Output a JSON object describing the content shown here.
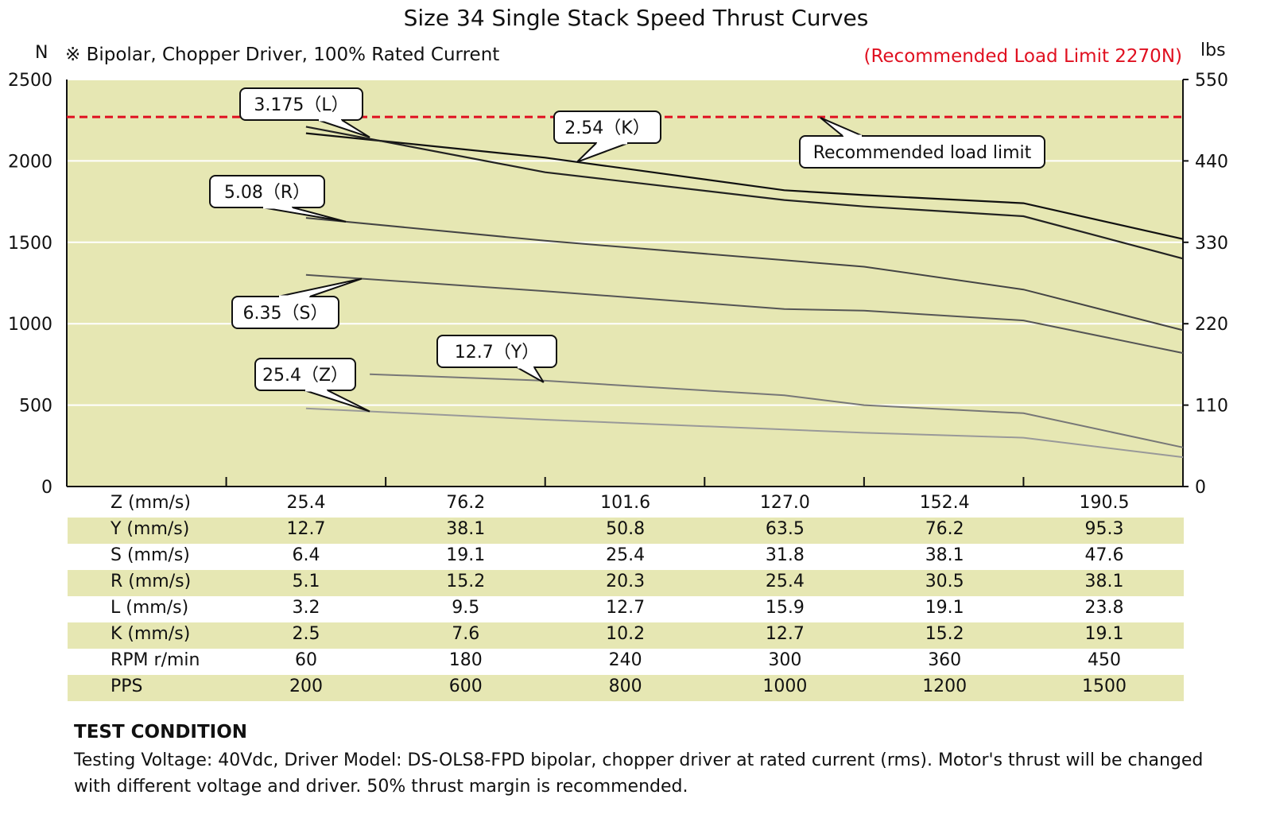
{
  "chart_data": {
    "type": "line",
    "title": "Size 34 Single Stack Speed Thrust Curves",
    "subtitle": "※ Bipolar, Chopper Driver, 100% Rated Current",
    "ylabel_left": "N",
    "ylabel_right": "lbs",
    "ylim": [
      0,
      2500
    ],
    "y_ticks": [
      "0",
      "500",
      "1000",
      "1500",
      "2000",
      "2500"
    ],
    "y2_ticks": [
      "0",
      "110",
      "220",
      "330",
      "440",
      "550"
    ],
    "x_positions": [
      1,
      2,
      3,
      4,
      5,
      6,
      7
    ],
    "load_limit_value": 2270,
    "load_limit_note": "(Recommended Load Limit 2270N)",
    "load_limit_label": "Recommended load limit",
    "series": [
      {
        "name": "2.54 (K)",
        "label": "2.54（K）",
        "color": "#111111",
        "x": [
          1.5,
          3.0,
          4.5,
          5.0,
          6.0,
          7.0
        ],
        "values": [
          2170,
          2020,
          1820,
          1790,
          1740,
          1520
        ]
      },
      {
        "name": "3.175 (L)",
        "label": "3.175（L）",
        "color": "#222222",
        "x": [
          1.5,
          3.0,
          4.5,
          5.0,
          6.0,
          7.0
        ],
        "values": [
          2210,
          1930,
          1760,
          1720,
          1660,
          1400
        ]
      },
      {
        "name": "5.08 (R)",
        "label": "5.08（R）",
        "color": "#444444",
        "x": [
          1.5,
          3.0,
          4.5,
          5.0,
          6.0,
          7.0
        ],
        "values": [
          1650,
          1510,
          1390,
          1350,
          1210,
          960
        ]
      },
      {
        "name": "6.35 (S)",
        "label": "6.35（S）",
        "color": "#555555",
        "x": [
          1.5,
          3.0,
          4.5,
          5.0,
          6.0,
          7.0
        ],
        "values": [
          1300,
          1200,
          1090,
          1080,
          1020,
          820
        ]
      },
      {
        "name": "12.7 (Y)",
        "label": "12.7（Y）",
        "color": "#777777",
        "x": [
          1.9,
          3.0,
          4.5,
          5.0,
          6.0,
          7.0
        ],
        "values": [
          690,
          650,
          560,
          500,
          450,
          240
        ]
      },
      {
        "name": "25.4 (Z)",
        "label": "25.4（Z）",
        "color": "#999999",
        "x": [
          1.5,
          3.0,
          4.5,
          5.0,
          6.0,
          7.0
        ],
        "values": [
          480,
          410,
          350,
          330,
          300,
          180
        ]
      }
    ]
  },
  "table": {
    "columns": [
      "25.4",
      "76.2",
      "101.6",
      "127.0",
      "152.4",
      "190.5"
    ],
    "rows": [
      {
        "label": "Z (mm/s)",
        "values": [
          "25.4",
          "76.2",
          "101.6",
          "127.0",
          "152.4",
          "190.5"
        ]
      },
      {
        "label": "Y (mm/s)",
        "values": [
          "12.7",
          "38.1",
          "50.8",
          "63.5",
          "76.2",
          "95.3"
        ]
      },
      {
        "label": "S (mm/s)",
        "values": [
          "6.4",
          "19.1",
          "25.4",
          "31.8",
          "38.1",
          "47.6"
        ]
      },
      {
        "label": "R (mm/s)",
        "values": [
          "5.1",
          "15.2",
          "20.3",
          "25.4",
          "30.5",
          "38.1"
        ]
      },
      {
        "label": "L (mm/s)",
        "values": [
          "3.2",
          "9.5",
          "12.7",
          "15.9",
          "19.1",
          "23.8"
        ]
      },
      {
        "label": "K (mm/s)",
        "values": [
          "2.5",
          "7.6",
          "10.2",
          "12.7",
          "15.2",
          "19.1"
        ]
      },
      {
        "label": "RPM r/min",
        "values": [
          "60",
          "180",
          "240",
          "300",
          "360",
          "450"
        ]
      },
      {
        "label": "PPS",
        "values": [
          "200",
          "600",
          "800",
          "1000",
          "1200",
          "1500"
        ]
      }
    ]
  },
  "test_condition": {
    "heading": "TEST CONDITION",
    "body": "Testing Voltage: 40Vdc, Driver Model: DS-OLS8-FPD bipolar, chopper driver at rated current (rms). Motor's thrust will be changed with different voltage and driver. 50% thrust margin is recommended."
  },
  "colors": {
    "plot_bg": "#e6e7b3",
    "limit_line": "#e01020",
    "row_shade": "#e6e7b3"
  }
}
